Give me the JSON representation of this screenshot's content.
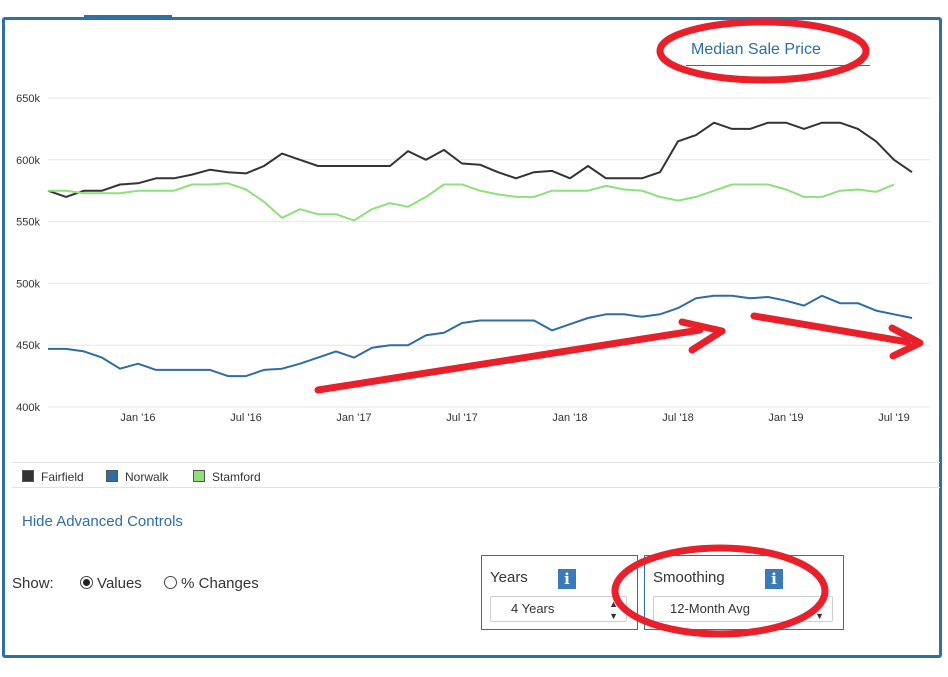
{
  "header": {
    "title_link": "Median Sale Price"
  },
  "chart_data": {
    "type": "line",
    "title": "Median Sale Price",
    "ylim": [
      400000,
      650000
    ],
    "y_ticks": [
      400000,
      450000,
      500000,
      550000,
      600000,
      650000
    ],
    "y_tick_labels": [
      "400k",
      "450k",
      "500k",
      "550k",
      "600k",
      "650k"
    ],
    "x_range": [
      "2015-08",
      "2019-09"
    ],
    "x_ticks": [
      "2016-01",
      "2016-07",
      "2017-01",
      "2017-07",
      "2018-01",
      "2018-07",
      "2019-01",
      "2019-07"
    ],
    "x_tick_labels": [
      "Jan '16",
      "Jul '16",
      "Jan '17",
      "Jul '17",
      "Jan '18",
      "Jul '18",
      "Jan '19",
      "Jul '19"
    ],
    "grid": true,
    "legend": "bottom-left",
    "series": [
      {
        "name": "Fairfield",
        "color": "#333333",
        "points": [
          [
            "2015-08",
            575000
          ],
          [
            "2015-09",
            570000
          ],
          [
            "2015-10",
            575000
          ],
          [
            "2015-11",
            575000
          ],
          [
            "2015-12",
            580000
          ],
          [
            "2016-01",
            581000
          ],
          [
            "2016-02",
            585000
          ],
          [
            "2016-03",
            585000
          ],
          [
            "2016-04",
            588000
          ],
          [
            "2016-05",
            592000
          ],
          [
            "2016-06",
            590000
          ],
          [
            "2016-07",
            589000
          ],
          [
            "2016-08",
            595000
          ],
          [
            "2016-09",
            605000
          ],
          [
            "2016-10",
            600000
          ],
          [
            "2016-11",
            595000
          ],
          [
            "2016-12",
            595000
          ],
          [
            "2017-01",
            595000
          ],
          [
            "2017-02",
            595000
          ],
          [
            "2017-03",
            595000
          ],
          [
            "2017-04",
            607000
          ],
          [
            "2017-05",
            600000
          ],
          [
            "2017-06",
            608000
          ],
          [
            "2017-07",
            597000
          ],
          [
            "2017-08",
            596000
          ],
          [
            "2017-09",
            590000
          ],
          [
            "2017-10",
            585000
          ],
          [
            "2017-11",
            590000
          ],
          [
            "2017-12",
            591000
          ],
          [
            "2018-01",
            585000
          ],
          [
            "2018-02",
            595000
          ],
          [
            "2018-03",
            585000
          ],
          [
            "2018-04",
            585000
          ],
          [
            "2018-05",
            585000
          ],
          [
            "2018-06",
            590000
          ],
          [
            "2018-07",
            615000
          ],
          [
            "2018-08",
            620000
          ],
          [
            "2018-09",
            630000
          ],
          [
            "2018-10",
            625000
          ],
          [
            "2018-11",
            625000
          ],
          [
            "2018-12",
            630000
          ],
          [
            "2019-01",
            630000
          ],
          [
            "2019-02",
            625000
          ],
          [
            "2019-03",
            630000
          ],
          [
            "2019-04",
            630000
          ],
          [
            "2019-05",
            625000
          ],
          [
            "2019-06",
            615000
          ],
          [
            "2019-07",
            600000
          ],
          [
            "2019-08",
            590000
          ]
        ]
      },
      {
        "name": "Norwalk",
        "color": "#2e6da4",
        "points": [
          [
            "2015-08",
            447000
          ],
          [
            "2015-09",
            447000
          ],
          [
            "2015-10",
            445000
          ],
          [
            "2015-11",
            440000
          ],
          [
            "2015-12",
            431000
          ],
          [
            "2016-01",
            435000
          ],
          [
            "2016-02",
            430000
          ],
          [
            "2016-03",
            430000
          ],
          [
            "2016-04",
            430000
          ],
          [
            "2016-05",
            430000
          ],
          [
            "2016-06",
            425000
          ],
          [
            "2016-07",
            425000
          ],
          [
            "2016-08",
            430000
          ],
          [
            "2016-09",
            431000
          ],
          [
            "2016-10",
            435000
          ],
          [
            "2016-11",
            440000
          ],
          [
            "2016-12",
            445000
          ],
          [
            "2017-01",
            440000
          ],
          [
            "2017-02",
            448000
          ],
          [
            "2017-03",
            450000
          ],
          [
            "2017-04",
            450000
          ],
          [
            "2017-05",
            458000
          ],
          [
            "2017-06",
            460000
          ],
          [
            "2017-07",
            468000
          ],
          [
            "2017-08",
            470000
          ],
          [
            "2017-09",
            470000
          ],
          [
            "2017-10",
            470000
          ],
          [
            "2017-11",
            470000
          ],
          [
            "2017-12",
            462000
          ],
          [
            "2018-01",
            467000
          ],
          [
            "2018-02",
            472000
          ],
          [
            "2018-03",
            475000
          ],
          [
            "2018-04",
            475000
          ],
          [
            "2018-05",
            473000
          ],
          [
            "2018-06",
            475000
          ],
          [
            "2018-07",
            480000
          ],
          [
            "2018-08",
            488000
          ],
          [
            "2018-09",
            490000
          ],
          [
            "2018-10",
            490000
          ],
          [
            "2018-11",
            488000
          ],
          [
            "2018-12",
            489000
          ],
          [
            "2019-01",
            486000
          ],
          [
            "2019-02",
            482000
          ],
          [
            "2019-03",
            490000
          ],
          [
            "2019-04",
            484000
          ],
          [
            "2019-05",
            484000
          ],
          [
            "2019-06",
            478000
          ],
          [
            "2019-07",
            475000
          ],
          [
            "2019-08",
            472000
          ]
        ]
      },
      {
        "name": "Stamford",
        "color": "#8ee07a",
        "points": [
          [
            "2015-08",
            575000
          ],
          [
            "2015-09",
            575000
          ],
          [
            "2015-10",
            573000
          ],
          [
            "2015-11",
            573000
          ],
          [
            "2015-12",
            573000
          ],
          [
            "2016-01",
            575000
          ],
          [
            "2016-02",
            575000
          ],
          [
            "2016-03",
            575000
          ],
          [
            "2016-04",
            580000
          ],
          [
            "2016-05",
            580000
          ],
          [
            "2016-06",
            581000
          ],
          [
            "2016-07",
            576000
          ],
          [
            "2016-08",
            566000
          ],
          [
            "2016-09",
            553000
          ],
          [
            "2016-10",
            560000
          ],
          [
            "2016-11",
            556000
          ],
          [
            "2016-12",
            556000
          ],
          [
            "2017-01",
            551000
          ],
          [
            "2017-02",
            560000
          ],
          [
            "2017-03",
            565000
          ],
          [
            "2017-04",
            562000
          ],
          [
            "2017-05",
            570000
          ],
          [
            "2017-06",
            580000
          ],
          [
            "2017-07",
            580000
          ],
          [
            "2017-08",
            575000
          ],
          [
            "2017-09",
            572000
          ],
          [
            "2017-10",
            570000
          ],
          [
            "2017-11",
            570000
          ],
          [
            "2017-12",
            575000
          ],
          [
            "2018-01",
            575000
          ],
          [
            "2018-02",
            575000
          ],
          [
            "2018-03",
            579000
          ],
          [
            "2018-04",
            576000
          ],
          [
            "2018-05",
            575000
          ],
          [
            "2018-06",
            570000
          ],
          [
            "2018-07",
            567000
          ],
          [
            "2018-08",
            570000
          ],
          [
            "2018-09",
            575000
          ],
          [
            "2018-10",
            580000
          ],
          [
            "2018-11",
            580000
          ],
          [
            "2018-12",
            580000
          ],
          [
            "2019-01",
            576000
          ],
          [
            "2019-02",
            570000
          ],
          [
            "2019-03",
            570000
          ],
          [
            "2019-04",
            575000
          ],
          [
            "2019-05",
            576000
          ],
          [
            "2019-06",
            574000
          ],
          [
            "2019-07",
            580000
          ]
        ]
      }
    ]
  },
  "legend": {
    "items": [
      {
        "label": "Fairfield",
        "color": "#333333"
      },
      {
        "label": "Norwalk",
        "color": "#2e6da4"
      },
      {
        "label": "Stamford",
        "color": "#8ee07a"
      }
    ]
  },
  "controls": {
    "hide_link": "Hide Advanced Controls",
    "show_label": "Show:",
    "values_label": "Values",
    "changes_label": "% Changes",
    "selected_show": "Values",
    "years": {
      "label": "Years",
      "value": "4 Years",
      "info_icon": "info-icon"
    },
    "smoothing": {
      "label": "Smoothing",
      "value": "12-Month Avg",
      "info_icon": "info-icon"
    }
  },
  "annotations": {
    "color": "#e8202a"
  }
}
